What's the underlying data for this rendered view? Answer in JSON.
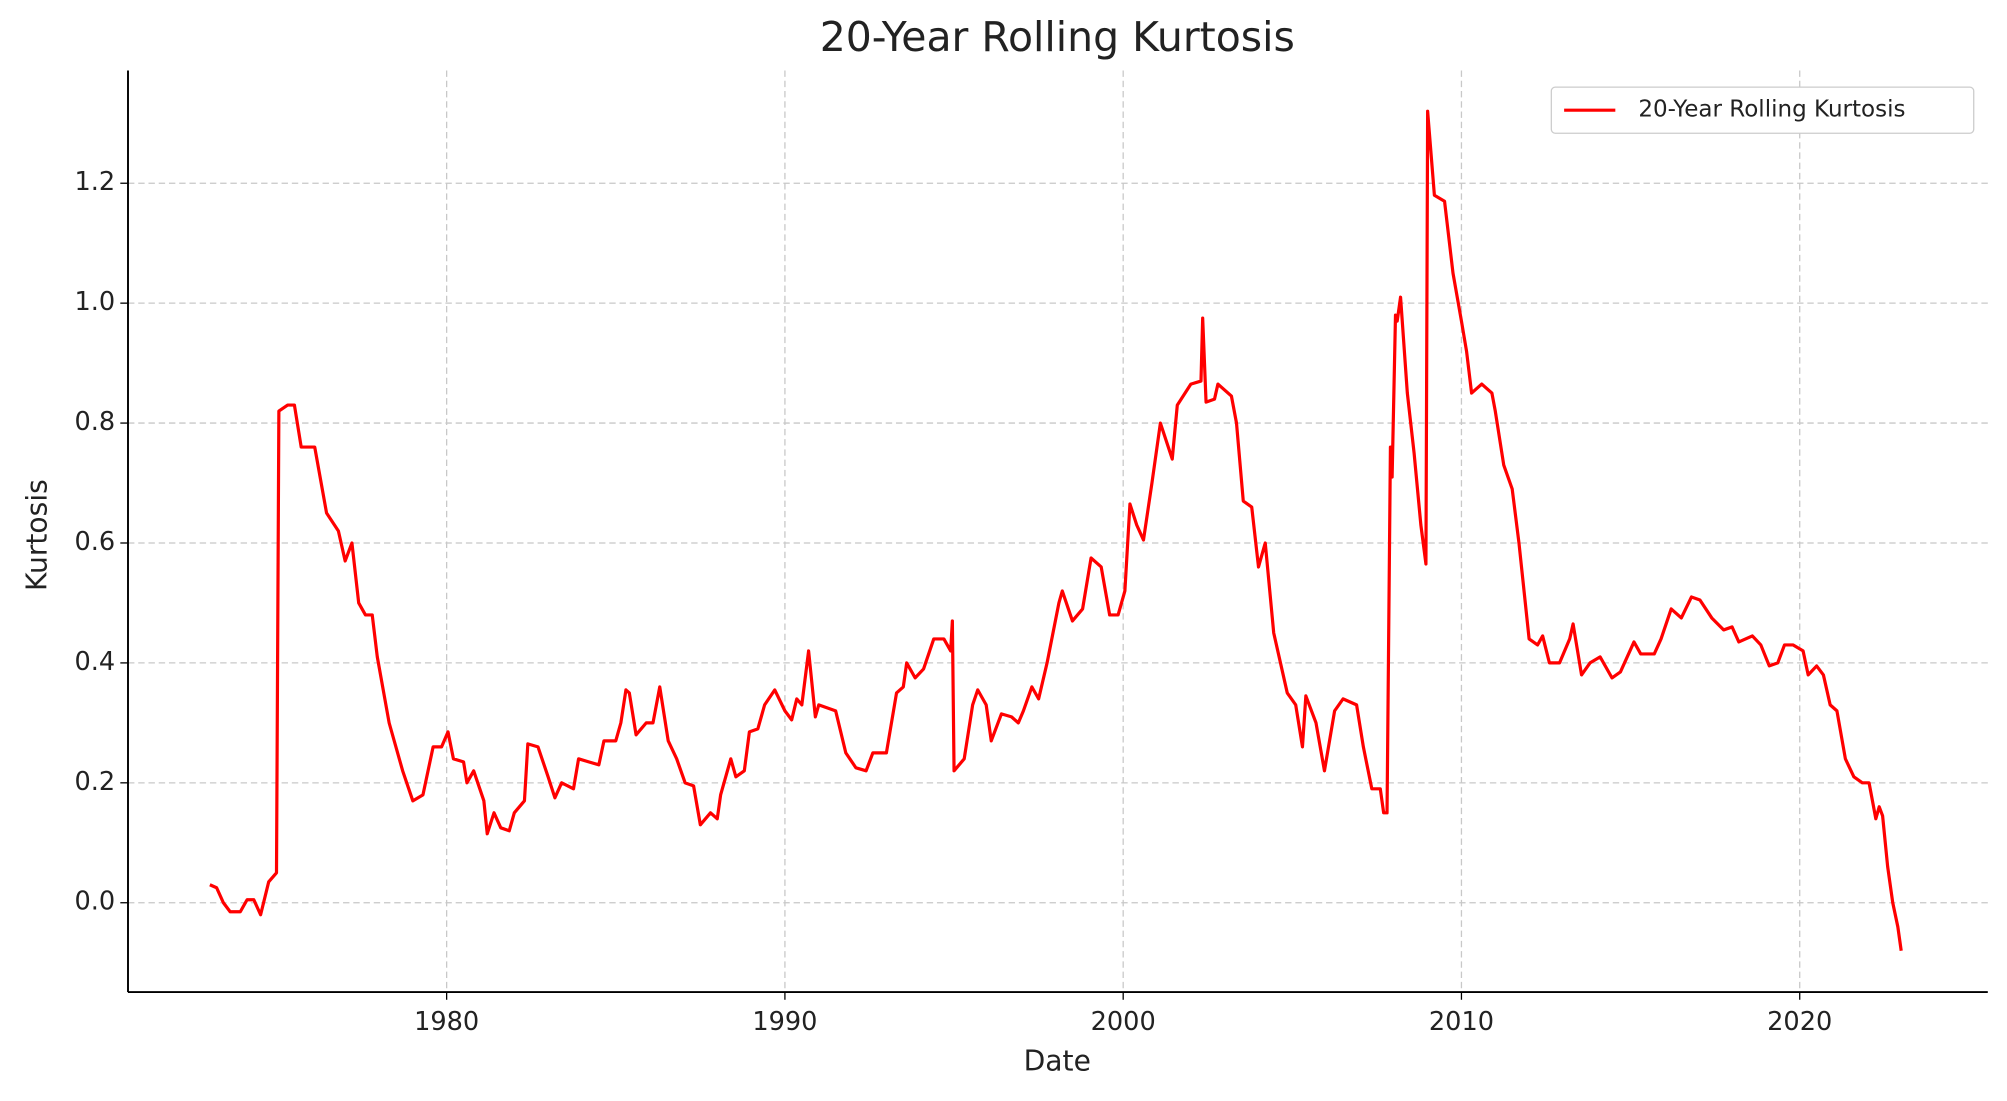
{
  "chart_data": {
    "type": "line",
    "title": "20-Year Rolling Kurtosis",
    "xlabel": "Date",
    "ylabel": "Kurtosis",
    "xlim": [
      1970.58,
      2025.56
    ],
    "ylim": [
      -0.149,
      1.388
    ],
    "xticks": [
      1980,
      1990,
      2000,
      2010,
      2020
    ],
    "yticks": [
      {
        "value": 0,
        "label": "0.0"
      },
      0.2,
      0.4,
      0.6,
      0.8,
      {
        "value": 1,
        "label": "1.0"
      },
      1.2
    ],
    "grid": true,
    "legend": "upper right",
    "x": [
      1973.0,
      1973.2,
      1973.4,
      1973.6,
      1973.9,
      1974.1,
      1974.3,
      1974.5,
      1974.74,
      1974.97,
      1975.04,
      1975.3,
      1975.5,
      1975.7,
      1976.1,
      1976.45,
      1976.8,
      1977.0,
      1977.2,
      1977.4,
      1977.6,
      1977.8,
      1977.95,
      1978.3,
      1978.7,
      1979.0,
      1979.3,
      1979.6,
      1979.85,
      1980.04,
      1980.2,
      1980.5,
      1980.6,
      1980.8,
      1981.1,
      1981.2,
      1981.4,
      1981.6,
      1981.85,
      1982.0,
      1982.3,
      1982.4,
      1982.7,
      1983.0,
      1983.2,
      1983.4,
      1983.75,
      1983.9,
      1984.2,
      1984.5,
      1984.65,
      1985.0,
      1985.15,
      1985.3,
      1985.4,
      1985.6,
      1985.9,
      1986.1,
      1986.3,
      1986.55,
      1986.8,
      1987.05,
      1987.3,
      1987.5,
      1987.8,
      1988.0,
      1988.1,
      1988.4,
      1988.55,
      1988.8,
      1988.95,
      1989.2,
      1989.4,
      1989.7,
      1990.0,
      1990.2,
      1990.35,
      1990.5,
      1990.7,
      1990.9,
      1991.0,
      1991.5,
      1991.8,
      1992.1,
      1992.4,
      1992.6,
      1993.0,
      1993.3,
      1993.5,
      1993.6,
      1993.85,
      1994.1,
      1994.4,
      1994.7,
      1994.9,
      1994.95,
      1995.0,
      1995.3,
      1995.55,
      1995.7,
      1995.95,
      1996.1,
      1996.4,
      1996.7,
      1996.9,
      1997.05,
      1997.3,
      1997.5,
      1997.75,
      1998.1,
      1998.2,
      1998.5,
      1998.8,
      1999.05,
      1999.35,
      1999.6,
      1999.85,
      2000.05,
      2000.2,
      2000.4,
      2000.6,
      2000.85,
      2001.1,
      2001.45,
      2001.6,
      2002.0,
      2002.3,
      2002.35,
      2002.45,
      2002.7,
      2002.8,
      2003.2,
      2003.35,
      2003.55,
      2003.8,
      2004.0,
      2004.2,
      2004.45,
      2004.65,
      2004.85,
      2005.1,
      2005.3,
      2005.4,
      2005.7,
      2005.95,
      2006.25,
      2006.5,
      2006.9,
      2007.1,
      2007.35,
      2007.6,
      2007.7,
      2007.8,
      2007.9,
      2007.95,
      2008.05,
      2008.1,
      2008.2,
      2008.4,
      2008.6,
      2008.8,
      2008.95,
      2009.0,
      2009.2,
      2009.5,
      2009.75,
      2010.0,
      2010.15,
      2010.3,
      2010.6,
      2010.9,
      2011.0,
      2011.25,
      2011.5,
      2011.7,
      2012.0,
      2012.25,
      2012.4,
      2012.6,
      2012.9,
      2013.2,
      2013.3,
      2013.55,
      2013.8,
      2014.1,
      2014.45,
      2014.7,
      2015.1,
      2015.3,
      2015.7,
      2015.9,
      2016.2,
      2016.5,
      2016.8,
      2017.05,
      2017.4,
      2017.75,
      2018.0,
      2018.2,
      2018.6,
      2018.85,
      2019.1,
      2019.35,
      2019.55,
      2019.8,
      2020.1,
      2020.25,
      2020.5,
      2020.7,
      2020.9,
      2021.1,
      2021.35,
      2021.6,
      2021.85,
      2022.05,
      2022.25,
      2022.35,
      2022.45,
      2022.6,
      2022.75,
      2022.9,
      2023.0
    ],
    "series": [
      {
        "name": "20-Year Rolling Kurtosis",
        "color": "#ff0000",
        "values": [
          0.03,
          0.025,
          0.0,
          -0.015,
          -0.015,
          0.005,
          0.005,
          -0.02,
          0.035,
          0.05,
          0.82,
          0.83,
          0.83,
          0.76,
          0.76,
          0.65,
          0.62,
          0.57,
          0.6,
          0.5,
          0.48,
          0.48,
          0.41,
          0.3,
          0.22,
          0.17,
          0.18,
          0.26,
          0.26,
          0.285,
          0.24,
          0.235,
          0.2,
          0.22,
          0.17,
          0.115,
          0.15,
          0.125,
          0.12,
          0.15,
          0.17,
          0.265,
          0.26,
          0.21,
          0.175,
          0.2,
          0.19,
          0.24,
          0.235,
          0.23,
          0.27,
          0.27,
          0.3,
          0.355,
          0.35,
          0.28,
          0.3,
          0.3,
          0.36,
          0.27,
          0.24,
          0.2,
          0.195,
          0.13,
          0.15,
          0.14,
          0.18,
          0.24,
          0.21,
          0.22,
          0.285,
          0.29,
          0.33,
          0.355,
          0.32,
          0.305,
          0.34,
          0.33,
          0.42,
          0.31,
          0.33,
          0.32,
          0.25,
          0.225,
          0.22,
          0.25,
          0.25,
          0.35,
          0.36,
          0.4,
          0.375,
          0.39,
          0.44,
          0.44,
          0.42,
          0.47,
          0.22,
          0.24,
          0.33,
          0.355,
          0.33,
          0.27,
          0.315,
          0.31,
          0.3,
          0.32,
          0.36,
          0.34,
          0.4,
          0.5,
          0.52,
          0.47,
          0.49,
          0.575,
          0.56,
          0.48,
          0.48,
          0.52,
          0.665,
          0.63,
          0.605,
          0.7,
          0.8,
          0.74,
          0.83,
          0.865,
          0.87,
          0.975,
          0.835,
          0.84,
          0.865,
          0.845,
          0.8,
          0.67,
          0.66,
          0.56,
          0.6,
          0.45,
          0.4,
          0.35,
          0.33,
          0.26,
          0.345,
          0.3,
          0.22,
          0.32,
          0.34,
          0.33,
          0.26,
          0.19,
          0.19,
          0.15,
          0.15,
          0.76,
          0.71,
          0.98,
          0.97,
          1.01,
          0.85,
          0.75,
          0.63,
          0.565,
          1.32,
          1.18,
          1.17,
          1.05,
          0.97,
          0.92,
          0.85,
          0.865,
          0.85,
          0.82,
          0.73,
          0.69,
          0.6,
          0.44,
          0.43,
          0.445,
          0.4,
          0.4,
          0.44,
          0.465,
          0.38,
          0.4,
          0.41,
          0.375,
          0.385,
          0.435,
          0.415,
          0.415,
          0.44,
          0.49,
          0.475,
          0.51,
          0.505,
          0.475,
          0.455,
          0.46,
          0.435,
          0.445,
          0.43,
          0.395,
          0.4,
          0.43,
          0.43,
          0.42,
          0.38,
          0.395,
          0.38,
          0.33,
          0.32,
          0.24,
          0.21,
          0.2,
          0.2,
          0.14,
          0.16,
          0.145,
          0.06,
          0.0,
          -0.04,
          -0.08
        ]
      }
    ]
  }
}
